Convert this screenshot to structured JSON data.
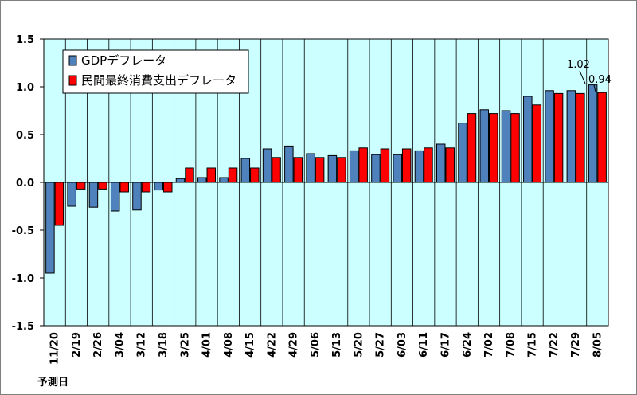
{
  "chart_data": {
    "type": "bar",
    "title": "",
    "xlabel": "予測日",
    "ylabel": "",
    "ylim": [
      -1.5,
      1.5
    ],
    "yticks": [
      "1.5",
      "1.0",
      "0.5",
      "0.0",
      "-0.5",
      "-1.0",
      "-1.5"
    ],
    "ytick_values": [
      1.5,
      1.0,
      0.5,
      0.0,
      -0.5,
      -1.0,
      -1.5
    ],
    "grid": "vertical",
    "legend_position": "top-left",
    "plot_background": "#ccffff",
    "categories": [
      "11/20",
      "2/19",
      "2/26",
      "3/04",
      "3/12",
      "3/18",
      "3/25",
      "4/01",
      "4/08",
      "4/15",
      "4/22",
      "4/29",
      "5/06",
      "5/13",
      "5/20",
      "5/27",
      "6/03",
      "6/11",
      "6/17",
      "6/24",
      "7/02",
      "7/08",
      "7/15",
      "7/22",
      "7/29",
      "8/05"
    ],
    "series": [
      {
        "name": "GDPデフレータ",
        "color": "#4f81bd",
        "values": [
          -0.95,
          -0.25,
          -0.26,
          -0.3,
          -0.29,
          -0.08,
          0.04,
          0.05,
          0.05,
          0.25,
          0.35,
          0.38,
          0.3,
          0.28,
          0.33,
          0.29,
          0.29,
          0.33,
          0.4,
          0.62,
          0.76,
          0.75,
          0.9,
          0.96,
          0.96,
          1.02
        ]
      },
      {
        "name": "民間最終消費支出デフレータ",
        "color": "#ff0000",
        "values": [
          -0.45,
          -0.07,
          -0.07,
          -0.1,
          -0.1,
          -0.1,
          0.15,
          0.15,
          0.15,
          0.15,
          0.26,
          0.26,
          0.26,
          0.26,
          0.36,
          0.35,
          0.35,
          0.36,
          0.36,
          0.72,
          0.72,
          0.72,
          0.81,
          0.93,
          0.93,
          0.94
        ]
      }
    ],
    "annotations": [
      "1.02",
      "0.94"
    ]
  }
}
